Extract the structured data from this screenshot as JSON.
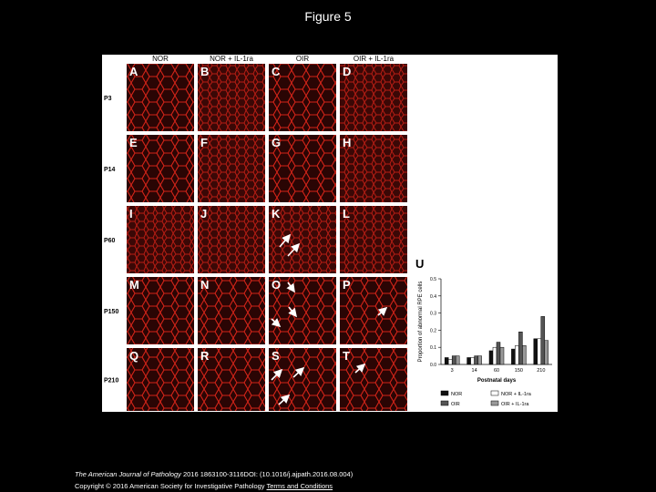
{
  "header": {
    "title": "Figure 5"
  },
  "figure": {
    "columns": [
      "NOR",
      "NOR + IL-1ra",
      "OIR",
      "OIR + IL-1ra"
    ],
    "rows": [
      "P3",
      "P14",
      "P60",
      "P150",
      "P210"
    ],
    "panels": [
      "A",
      "B",
      "C",
      "D",
      "E",
      "F",
      "G",
      "H",
      "I",
      "J",
      "K",
      "L",
      "M",
      "N",
      "O",
      "P",
      "Q",
      "R",
      "S",
      "T"
    ]
  },
  "chart_data": {
    "type": "bar",
    "panel_label": "U",
    "y_label": "Proportion of abnormal RPE cells",
    "x_label": "Postnatal days",
    "categories": [
      "3",
      "14",
      "60",
      "150",
      "210"
    ],
    "series": [
      {
        "name": "NOR",
        "color": "#111111",
        "values": [
          0.04,
          0.04,
          0.08,
          0.09,
          0.15
        ]
      },
      {
        "name": "NOR + IL-1ra",
        "color": "#ffffff",
        "values": [
          0.03,
          0.04,
          0.1,
          0.11,
          0.15
        ]
      },
      {
        "name": "OIR",
        "color": "#555555",
        "values": [
          0.05,
          0.05,
          0.13,
          0.19,
          0.28
        ]
      },
      {
        "name": "OIR + IL-1ra",
        "color": "#999999",
        "values": [
          0.05,
          0.05,
          0.1,
          0.11,
          0.14
        ]
      }
    ],
    "ylim": [
      0,
      0.5
    ],
    "yticks": [
      {
        "value": 0,
        "label": "0.0"
      },
      0.1,
      0.2,
      0.3,
      0.4,
      0.5
    ]
  },
  "footer": {
    "journal": "The American Journal of Pathology",
    "citation": " 2016 1863100-3116DOI: (10.1016/j.ajpath.2016.08.004)",
    "copyright": "Copyright © 2016 American Society for Investigative Pathology",
    "link": "Terms and Conditions"
  }
}
